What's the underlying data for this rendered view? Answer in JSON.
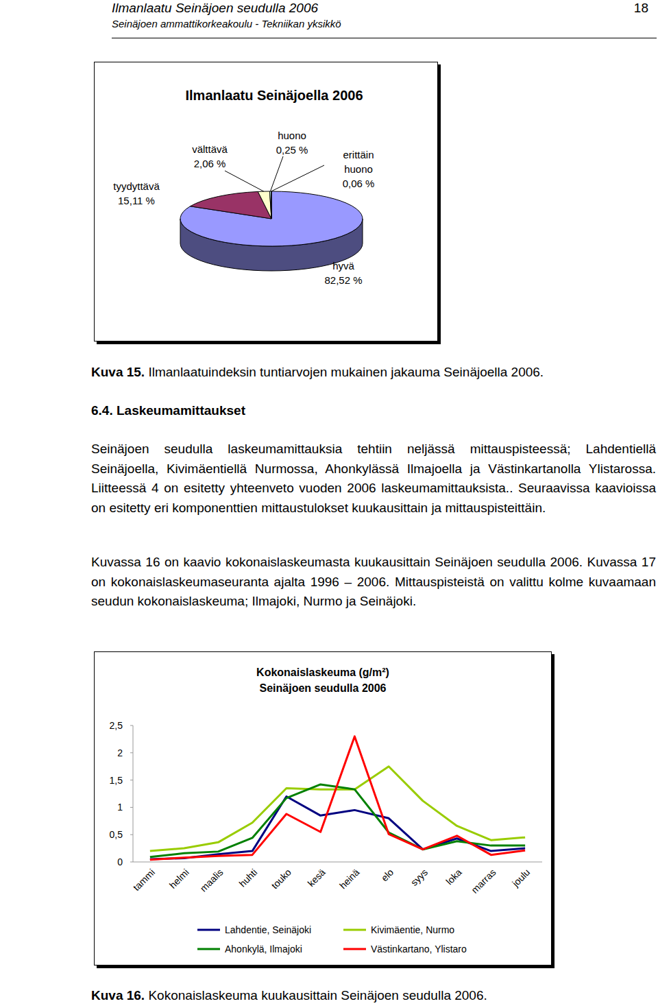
{
  "header": {
    "title": "Ilmanlaatu Seinäjoen seudulla 2006",
    "subtitle": "Seinäjoen ammattikorkeakoulu - Tekniikan yksikkö",
    "page_number": 18
  },
  "chart_data": [
    {
      "type": "pie",
      "title": "Ilmanlaatu Seinäjoella 2006",
      "categories": [
        "hyvä",
        "tyydyttävä",
        "välttävä",
        "huono",
        "erittäin huono"
      ],
      "values": [
        82.52,
        15.11,
        2.06,
        0.25,
        0.06
      ],
      "value_labels": [
        "82,52 %",
        "15,11 %",
        "2,06 %",
        "0,25 %",
        "0,06 %"
      ],
      "colors": [
        "#9999FF",
        "#993366",
        "#FFFFCC",
        "#CCFFFF",
        "#660066"
      ],
      "data_labels": true
    },
    {
      "type": "line",
      "title": "Kokonaislaskeuma (g/m²)",
      "subtitle": "Seinäjoen seudulla 2006",
      "categories": [
        "tammi",
        "helmi",
        "maalis",
        "huhti",
        "touko",
        "kesä",
        "heinä",
        "elo",
        "syys",
        "loka",
        "marras",
        "joulu"
      ],
      "series": [
        {
          "name": "Lahdentie, Seinäjoki",
          "color": "#000080",
          "values": [
            0.05,
            0.07,
            0.14,
            0.2,
            1.2,
            0.85,
            0.95,
            0.8,
            0.23,
            0.43,
            0.2,
            0.25
          ]
        },
        {
          "name": "Kivimäentie, Nurmo",
          "color": "#99CC00",
          "values": [
            0.2,
            0.25,
            0.36,
            0.72,
            1.35,
            1.33,
            1.33,
            1.75,
            1.12,
            0.66,
            0.4,
            0.45
          ]
        },
        {
          "name": "Ahonkylä, Ilmajoki",
          "color": "#008000",
          "values": [
            0.09,
            0.16,
            0.19,
            0.44,
            1.17,
            1.42,
            1.33,
            0.54,
            0.23,
            0.38,
            0.3,
            0.3
          ]
        },
        {
          "name": "Västinkartano, Ylistaro",
          "color": "#FF0000",
          "values": [
            0.04,
            0.08,
            0.11,
            0.13,
            0.88,
            0.55,
            2.3,
            0.51,
            0.23,
            0.48,
            0.13,
            0.21
          ]
        }
      ],
      "ylim": [
        0,
        2.5
      ],
      "yticks": [
        0,
        {
          "value": 0.5,
          "label": "0,5"
        },
        1,
        {
          "value": 1.5,
          "label": "1,5"
        },
        2,
        {
          "value": 2.5,
          "label": "2,5"
        }
      ],
      "grid": false,
      "legend": "bottom"
    }
  ],
  "figures": [
    {
      "label": "Kuva 15.",
      "caption": "Ilmanlaatuindeksin tuntiarvojen mukainen jakauma Seinäjoella 2006."
    },
    {
      "label": "Kuva 16.",
      "caption": "Kokonaislaskeuma kuukausittain Seinäjoen seudulla 2006."
    }
  ],
  "section": {
    "number": "6.4.",
    "title": "Laskeumamittaukset"
  },
  "paragraphs": [
    "Seinäjoen seudulla laskeumamittauksia tehtiin neljässä mittauspisteessä; Lahdentiellä Seinäjoella, Kivimäentiellä Nurmossa, Ahonkylässä Ilmajoella ja Västinkartanolla Ylistarossa. Liitteessä 4 on esitetty yhteenveto vuoden 2006 laskeumamittauksista.. Seuraavissa kaavioissa on esitetty eri komponenttien mittaustulokset kuukausittain ja mittauspisteittäin.",
    "Kuvassa 16 on kaavio kokonaislaskeumasta kuukausittain Seinäjoen seudulla 2006. Kuvassa 17 on kokonaislaskeumaseuranta ajalta 1996 – 2006. Mittauspisteistä on valittu kolme kuvaamaan seudun kokonaislaskeuma; Ilmajoki, Nurmo ja Seinäjoki."
  ]
}
